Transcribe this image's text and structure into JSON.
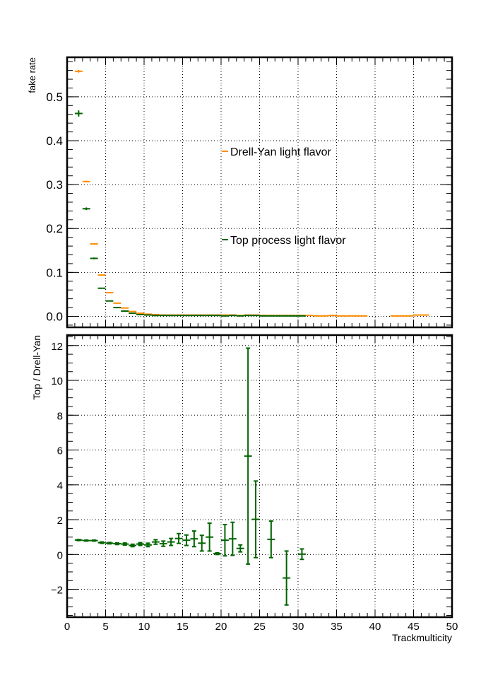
{
  "chart_data": [
    {
      "type": "scatter",
      "title": "",
      "ylabel": "fake rate",
      "xlim": [
        0,
        50
      ],
      "ylim": [
        -0.025,
        0.59
      ],
      "yticks": [
        0.0,
        0.1,
        0.2,
        0.3,
        0.4,
        0.5
      ],
      "ytick_labels": [
        "0.0",
        "0.1",
        "0.2",
        "0.3",
        "0.4",
        "0.5"
      ],
      "grid": true,
      "legend": "inside",
      "series": [
        {
          "name": "Drell-Yan light flavor",
          "color": "#ff8c00",
          "x": [
            1,
            2,
            3,
            4,
            5,
            6,
            7,
            8,
            9,
            10,
            11,
            12,
            13,
            14,
            15,
            16,
            17,
            18,
            19,
            20,
            21,
            22,
            23,
            24,
            25,
            26,
            27,
            28,
            29,
            30,
            31,
            32,
            33,
            34,
            35,
            36,
            37,
            38,
            42,
            43,
            44,
            45,
            46
          ],
          "y": [
            0.558,
            0.307,
            0.165,
            0.094,
            0.054,
            0.03,
            0.019,
            0.011,
            0.007,
            0.005,
            0.004,
            0.003,
            0.003,
            0.003,
            0.003,
            0.003,
            0.003,
            0.003,
            0.003,
            0.003,
            0.003,
            0.002,
            0.003,
            0.003,
            0.002,
            0.002,
            0.002,
            0.002,
            0.002,
            0.002,
            0.002,
            0.001,
            0.001,
            0.002,
            0.001,
            0.001,
            0.001,
            0.001,
            0.001,
            0.001,
            0.001,
            0.003,
            0.003
          ],
          "yerr": [
            0.003,
            0.002,
            0.0015,
            0.001,
            0.001,
            0.001,
            0.001,
            0.001,
            0.001,
            0.001,
            0.001,
            0.001,
            0.001,
            0.001,
            0.001,
            0.001,
            0.001,
            0.001,
            0.001,
            0.001,
            0.001,
            0.001,
            0.001,
            0.001,
            0.001,
            0.001,
            0.001,
            0.001,
            0.001,
            0.001,
            0.001,
            0.001,
            0.001,
            0.001,
            0.001,
            0.001,
            0.001,
            0.001,
            0.001,
            0.001,
            0.001,
            0.001,
            0.001
          ]
        },
        {
          "name": "Top process light flavor",
          "color": "#006400",
          "x": [
            1,
            2,
            3,
            4,
            5,
            6,
            7,
            8,
            9,
            10,
            11,
            12,
            13,
            14,
            15,
            16,
            17,
            18,
            19,
            20,
            21,
            22,
            23,
            24,
            25,
            26,
            27,
            28,
            29,
            30
          ],
          "y": [
            0.462,
            0.245,
            0.132,
            0.064,
            0.035,
            0.02,
            0.012,
            0.007,
            0.004,
            0.003,
            0.002,
            0.002,
            0.002,
            0.002,
            0.002,
            0.002,
            0.002,
            0.002,
            0.002,
            0.001,
            0.002,
            0.001,
            0.002,
            0.002,
            0.001,
            0.001,
            0.001,
            0.001,
            0.001,
            0.001
          ],
          "yerr": [
            0.007,
            0.003,
            0.002,
            0.001,
            0.001,
            0.001,
            0.001,
            0.001,
            0.001,
            0.001,
            0.001,
            0.001,
            0.001,
            0.001,
            0.001,
            0.001,
            0.001,
            0.001,
            0.001,
            0.001,
            0.001,
            0.001,
            0.001,
            0.001,
            0.001,
            0.001,
            0.001,
            0.001,
            0.001,
            0.001
          ]
        }
      ]
    },
    {
      "type": "scatter",
      "title": "",
      "xlabel": "Trackmulticity",
      "ylabel": "Top / Drell-Yan",
      "xlim": [
        0,
        50
      ],
      "ylim": [
        -3.6,
        12.6
      ],
      "xticks": [
        0,
        5,
        10,
        15,
        20,
        25,
        30,
        35,
        40,
        45,
        50
      ],
      "xtick_labels": [
        "0",
        "5",
        "10",
        "15",
        "20",
        "25",
        "30",
        "35",
        "40",
        "45",
        "50"
      ],
      "yticks": [
        -2,
        0,
        2,
        4,
        6,
        8,
        10,
        12
      ],
      "ytick_labels": [
        "−2",
        "0",
        "2",
        "4",
        "6",
        "8",
        "10",
        "12"
      ],
      "grid": true,
      "series": [
        {
          "color": "#006400",
          "x": [
            1,
            2,
            3,
            4,
            5,
            6,
            7,
            8,
            9,
            10,
            11,
            12,
            13,
            14,
            15,
            16,
            17,
            18,
            19,
            20,
            21,
            22,
            23,
            24,
            26,
            28,
            30
          ],
          "y": [
            0.83,
            0.8,
            0.8,
            0.68,
            0.65,
            0.62,
            0.6,
            0.52,
            0.6,
            0.55,
            0.72,
            0.62,
            0.72,
            0.92,
            0.82,
            0.9,
            0.65,
            1.0,
            0.05,
            0.82,
            0.9,
            0.35,
            5.65,
            2.02,
            0.87,
            -1.35,
            0.02
          ],
          "yerr": [
            0.03,
            0.03,
            0.03,
            0.04,
            0.04,
            0.05,
            0.06,
            0.07,
            0.08,
            0.1,
            0.13,
            0.15,
            0.2,
            0.28,
            0.3,
            0.45,
            0.45,
            0.8,
            0.05,
            0.9,
            0.95,
            0.2,
            6.2,
            2.2,
            1.05,
            1.55,
            0.3
          ]
        }
      ]
    }
  ]
}
